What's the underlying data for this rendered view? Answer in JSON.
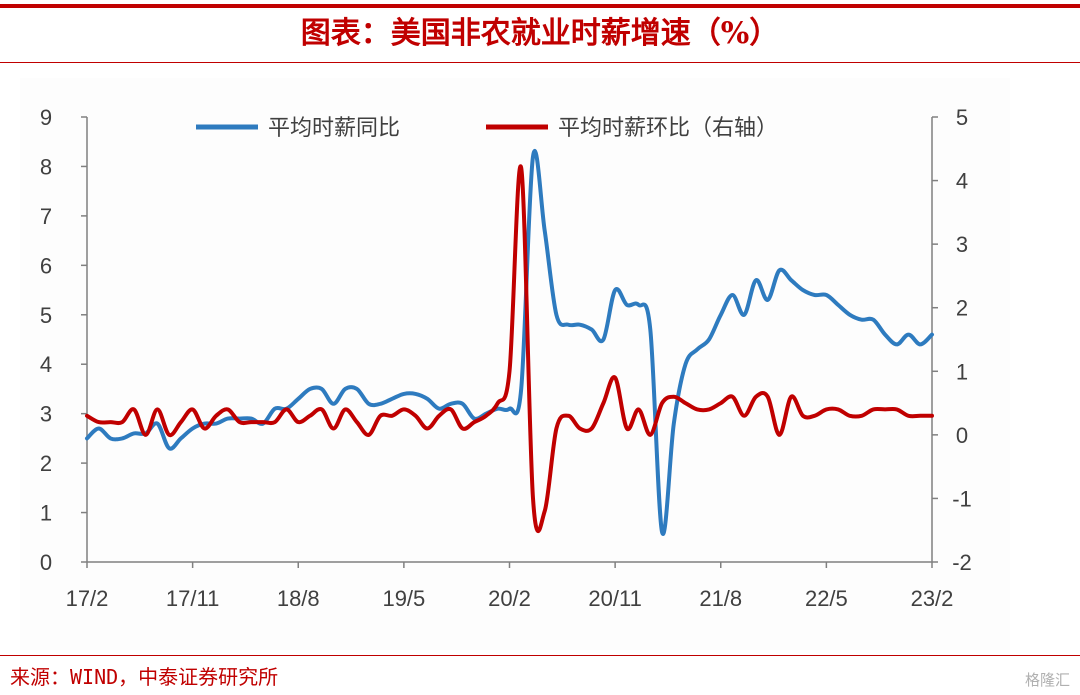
{
  "title": "图表：美国非农就业时薪增速（%）",
  "source": "来源：WIND，中泰证券研究所",
  "watermark": "格隆汇",
  "colors": {
    "accent": "#c00000",
    "series_yoy": "#2e7bbf",
    "series_mom": "#c00000",
    "axis": "#808080",
    "text": "#404040"
  },
  "chart_data": {
    "type": "line",
    "title": "",
    "x_ticks": [
      "17/2",
      "17/11",
      "18/8",
      "19/5",
      "20/2",
      "20/11",
      "21/8",
      "22/5",
      "23/2"
    ],
    "x_range": [
      "2017-02",
      "2023-02"
    ],
    "y_left": {
      "range": [
        0,
        9
      ],
      "ticks": [
        "0",
        "1",
        "2",
        "3",
        "4",
        "5",
        "6",
        "7",
        "8",
        "9"
      ]
    },
    "y_right": {
      "range": [
        -2,
        5
      ],
      "ticks": [
        "-2",
        "-1",
        "0",
        "1",
        "2",
        "3",
        "4",
        "5"
      ]
    },
    "legend_position": "top",
    "series": [
      {
        "name": "平均时薪同比",
        "axis": "left",
        "color": "#2e7bbf",
        "x": [
          "2017-02",
          "2017-03",
          "2017-04",
          "2017-05",
          "2017-06",
          "2017-07",
          "2017-08",
          "2017-09",
          "2017-10",
          "2017-11",
          "2017-12",
          "2018-01",
          "2018-02",
          "2018-03",
          "2018-04",
          "2018-05",
          "2018-06",
          "2018-07",
          "2018-08",
          "2018-09",
          "2018-10",
          "2018-11",
          "2018-12",
          "2019-01",
          "2019-02",
          "2019-03",
          "2019-04",
          "2019-05",
          "2019-06",
          "2019-07",
          "2019-08",
          "2019-09",
          "2019-10",
          "2019-11",
          "2019-12",
          "2020-01",
          "2020-02",
          "2020-03",
          "2020-04",
          "2020-05",
          "2020-06",
          "2020-07",
          "2020-08",
          "2020-09",
          "2020-10",
          "2020-11",
          "2020-12",
          "2021-01",
          "2021-02",
          "2021-03",
          "2021-04",
          "2021-05",
          "2021-06",
          "2021-07",
          "2021-08",
          "2021-09",
          "2021-10",
          "2021-11",
          "2021-12",
          "2022-01",
          "2022-02",
          "2022-03",
          "2022-04",
          "2022-05",
          "2022-06",
          "2022-07",
          "2022-08",
          "2022-09",
          "2022-10",
          "2022-11",
          "2022-12",
          "2023-01",
          "2023-02"
        ],
        "values": [
          2.5,
          2.7,
          2.5,
          2.5,
          2.6,
          2.6,
          2.8,
          2.3,
          2.5,
          2.7,
          2.8,
          2.8,
          2.9,
          2.9,
          2.9,
          2.8,
          3.1,
          3.1,
          3.3,
          3.5,
          3.5,
          3.2,
          3.5,
          3.5,
          3.2,
          3.2,
          3.3,
          3.4,
          3.4,
          3.3,
          3.1,
          3.2,
          3.2,
          2.9,
          3.0,
          3.1,
          3.1,
          3.5,
          8.2,
          6.7,
          5.0,
          4.8,
          4.8,
          4.7,
          4.5,
          5.5,
          5.2,
          5.2,
          4.7,
          0.6,
          2.8,
          4.0,
          4.3,
          4.5,
          5.0,
          5.4,
          5.0,
          5.7,
          5.3,
          5.9,
          5.7,
          5.5,
          5.4,
          5.4,
          5.2,
          5.0,
          4.9,
          4.9,
          4.6,
          4.4,
          4.6,
          4.4,
          4.6
        ]
      },
      {
        "name": "平均时薪环比（右轴）",
        "axis": "right",
        "color": "#c00000",
        "x": [
          "2017-02",
          "2017-03",
          "2017-04",
          "2017-05",
          "2017-06",
          "2017-07",
          "2017-08",
          "2017-09",
          "2017-10",
          "2017-11",
          "2017-12",
          "2018-01",
          "2018-02",
          "2018-03",
          "2018-04",
          "2018-05",
          "2018-06",
          "2018-07",
          "2018-08",
          "2018-09",
          "2018-10",
          "2018-11",
          "2018-12",
          "2019-01",
          "2019-02",
          "2019-03",
          "2019-04",
          "2019-05",
          "2019-06",
          "2019-07",
          "2019-08",
          "2019-09",
          "2019-10",
          "2019-11",
          "2019-12",
          "2020-01",
          "2020-02",
          "2020-03",
          "2020-04",
          "2020-05",
          "2020-06",
          "2020-07",
          "2020-08",
          "2020-09",
          "2020-10",
          "2020-11",
          "2020-12",
          "2021-01",
          "2021-02",
          "2021-03",
          "2021-04",
          "2021-05",
          "2021-06",
          "2021-07",
          "2021-08",
          "2021-09",
          "2021-10",
          "2021-11",
          "2021-12",
          "2022-01",
          "2022-02",
          "2022-03",
          "2022-04",
          "2022-05",
          "2022-06",
          "2022-07",
          "2022-08",
          "2022-09",
          "2022-10",
          "2022-11",
          "2022-12",
          "2023-01",
          "2023-02"
        ],
        "values": [
          0.3,
          0.2,
          0.2,
          0.2,
          0.4,
          0.0,
          0.4,
          0.0,
          0.2,
          0.4,
          0.1,
          0.3,
          0.4,
          0.2,
          0.2,
          0.2,
          0.2,
          0.4,
          0.2,
          0.3,
          0.4,
          0.1,
          0.4,
          0.2,
          0.0,
          0.3,
          0.3,
          0.4,
          0.3,
          0.1,
          0.3,
          0.4,
          0.1,
          0.2,
          0.3,
          0.5,
          1.0,
          4.2,
          -1.0,
          -1.2,
          0.1,
          0.3,
          0.1,
          0.1,
          0.5,
          0.9,
          0.1,
          0.4,
          0.0,
          0.5,
          0.6,
          0.5,
          0.4,
          0.4,
          0.5,
          0.6,
          0.3,
          0.6,
          0.6,
          0.0,
          0.6,
          0.3,
          0.3,
          0.4,
          0.4,
          0.3,
          0.3,
          0.4,
          0.4,
          0.4,
          0.3,
          0.3,
          0.3
        ]
      }
    ]
  }
}
